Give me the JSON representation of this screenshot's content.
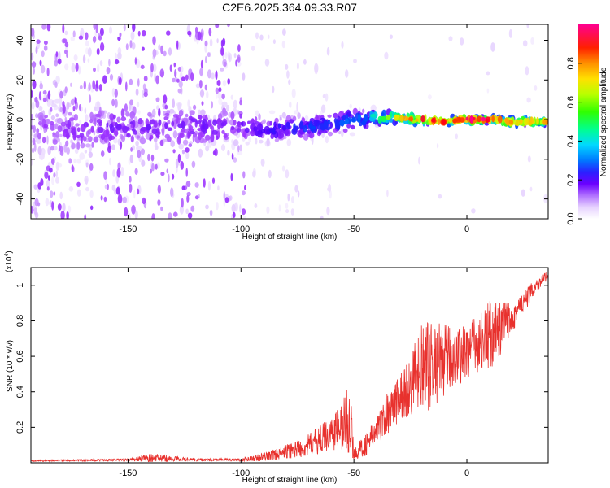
{
  "title": "C2E6.2025.364.09.33.R07",
  "chart_data": [
    {
      "type": "heatmap",
      "xlabel": "Height of straight line (km)",
      "ylabel": "Frequency (Hz)",
      "xlim": [
        -193,
        36
      ],
      "ylim": [
        -50,
        48
      ],
      "xticks": [
        "-150",
        "-100",
        "-50",
        "0"
      ],
      "xtick_values": [
        -150,
        -100,
        -50,
        0
      ],
      "yticks": [
        "40",
        "20",
        "0",
        "-20",
        "-40"
      ],
      "ytick_values": [
        40,
        20,
        0,
        -20,
        -40
      ],
      "colorbar": {
        "label": "Normalized spectral amplitude",
        "range": [
          0,
          1
        ],
        "ticks": [
          "0.0",
          "0.2",
          "0.4",
          "0.6",
          "0.8"
        ],
        "tick_values": [
          0.0,
          0.2,
          0.4,
          0.6,
          0.8
        ],
        "colormap": [
          "#ffffff",
          "#e6d2ff",
          "#9b30ff",
          "#4b00ff",
          "#0044ff",
          "#00c0ff",
          "#00ff80",
          "#40ff00",
          "#c8ff00",
          "#ffd000",
          "#ff8000",
          "#ff0000",
          "#ff0090"
        ]
      },
      "ridge": {
        "x": [
          -193,
          -150,
          -100,
          -90,
          -70,
          -50,
          -40,
          -30,
          -20,
          -10,
          0,
          10,
          20,
          36
        ],
        "y": [
          -5,
          -4,
          -3,
          -5,
          -4,
          0,
          1,
          1,
          0,
          -1,
          0,
          0,
          -1,
          -1
        ],
        "peak_amplitude": [
          0.15,
          0.2,
          0.2,
          0.25,
          0.3,
          0.35,
          0.5,
          0.7,
          0.9,
          0.95,
          1.0,
          0.95,
          0.85,
          0.8
        ],
        "spread_hz": [
          20,
          12,
          12,
          8,
          7,
          6,
          4,
          3,
          2.5,
          2,
          2,
          2,
          2,
          2
        ]
      }
    },
    {
      "type": "line",
      "xlabel": "Height of straight line (km)",
      "ylabel": "SNR (10 * v/v)",
      "y_multiplier": "(x10",
      "y_multiplier_exp": "4",
      "x_multiplier_close": ")",
      "xlim": [
        -193,
        36
      ],
      "ylim": [
        0,
        1.1
      ],
      "xticks": [
        "-150",
        "-100",
        "-50",
        "0"
      ],
      "xtick_values": [
        -150,
        -100,
        -50,
        0
      ],
      "yticks": [
        "0.2",
        "0.4",
        "0.6",
        "0.8",
        "1"
      ],
      "ytick_values": [
        0.2,
        0.4,
        0.6,
        0.8,
        1.0
      ],
      "color": "#e8312d",
      "envelope": {
        "x": [
          -193,
          -150,
          -140,
          -120,
          -100,
          -90,
          -80,
          -70,
          -60,
          -55,
          -52,
          -50,
          -45,
          -40,
          -35,
          -30,
          -25,
          -20,
          -15,
          -10,
          -5,
          0,
          5,
          10,
          15,
          20,
          25,
          30,
          36
        ],
        "base": [
          0.01,
          0.015,
          0.02,
          0.015,
          0.015,
          0.025,
          0.05,
          0.08,
          0.14,
          0.16,
          0.2,
          0.04,
          0.08,
          0.15,
          0.25,
          0.32,
          0.38,
          0.45,
          0.48,
          0.52,
          0.55,
          0.58,
          0.62,
          0.66,
          0.7,
          0.8,
          0.88,
          0.98,
          1.05
        ],
        "amp": [
          0.005,
          0.008,
          0.03,
          0.01,
          0.01,
          0.03,
          0.05,
          0.08,
          0.12,
          0.18,
          0.3,
          0.04,
          0.08,
          0.1,
          0.15,
          0.18,
          0.22,
          0.32,
          0.3,
          0.25,
          0.2,
          0.22,
          0.2,
          0.25,
          0.2,
          0.12,
          0.08,
          0.05,
          0.03
        ]
      }
    }
  ]
}
